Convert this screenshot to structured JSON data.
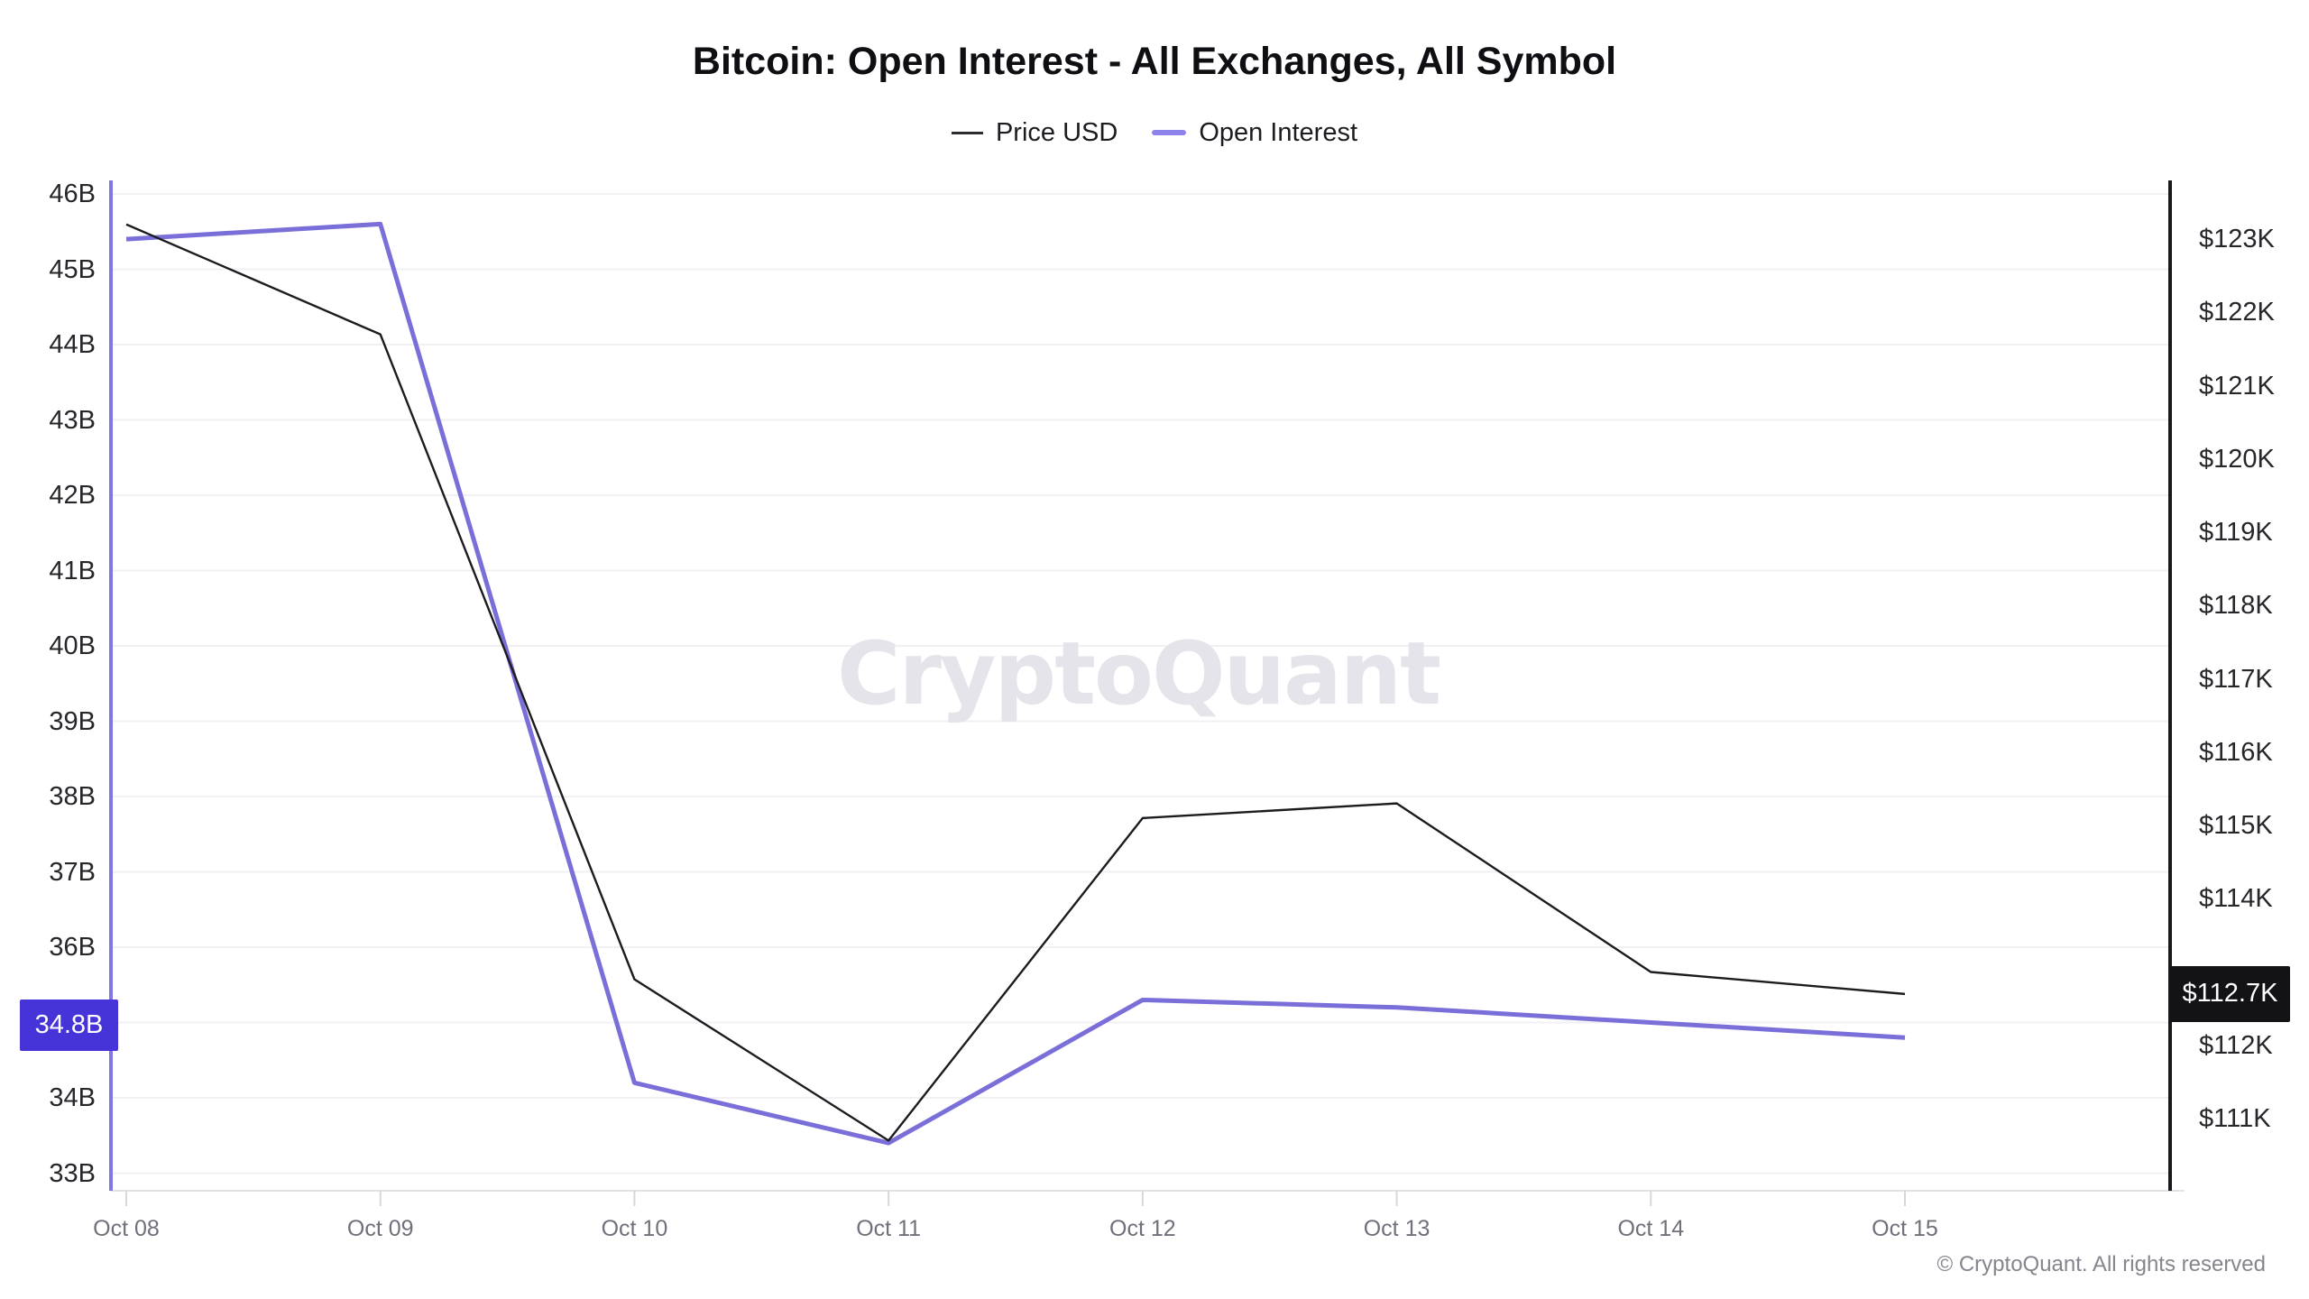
{
  "page": {
    "title": "Bitcoin: Open Interest - All Exchanges, All Symbol"
  },
  "watermark": "CryptoQuant",
  "footer": {
    "copyright": "© CryptoQuant. All rights reserved"
  },
  "chart_data": {
    "type": "line",
    "title": "Bitcoin: Open Interest - All Exchanges, All Symbol",
    "grid": "horizontal",
    "legend_position": "top",
    "categories": [
      "Oct 08",
      "Oct 09",
      "Oct 10",
      "Oct 11",
      "Oct 12",
      "Oct 13",
      "Oct 14",
      "Oct 15"
    ],
    "series": [
      {
        "name": "Price USD",
        "axis": "right",
        "unit": "K USD",
        "color": "#1c1c20",
        "legend_dash_color": "#2b2b30",
        "stroke_width": 2.4,
        "values": [
          123.2,
          121.7,
          112.9,
          110.7,
          115.1,
          115.3,
          113.0,
          112.7
        ]
      },
      {
        "name": "Open Interest",
        "axis": "left",
        "unit": "B USD",
        "color": "#7a6fd9",
        "legend_dash_color": "#8d81ea",
        "stroke_width": 5,
        "values": [
          45.4,
          45.6,
          34.2,
          33.4,
          35.3,
          35.2,
          35.0,
          34.8
        ]
      }
    ],
    "left_axis": {
      "title": "Open Interest",
      "unit": "B",
      "range": [
        32.8,
        46.2
      ],
      "axis_line_color": "#8077e5",
      "grid_values": [
        33,
        34,
        35,
        36,
        37,
        38,
        39,
        40,
        41,
        42,
        43,
        44,
        45,
        46
      ],
      "ticks": [
        {
          "value": 46,
          "label": "46B"
        },
        {
          "value": 45,
          "label": "45B"
        },
        {
          "value": 44,
          "label": "44B"
        },
        {
          "value": 43,
          "label": "43B"
        },
        {
          "value": 42,
          "label": "42B"
        },
        {
          "value": 41,
          "label": "41B"
        },
        {
          "value": 40,
          "label": "40B"
        },
        {
          "value": 39,
          "label": "39B"
        },
        {
          "value": 38,
          "label": "38B"
        },
        {
          "value": 37,
          "label": "37B"
        },
        {
          "value": 36,
          "label": "36B"
        },
        {
          "value": 34,
          "label": "34B"
        },
        {
          "value": 33,
          "label": "33B"
        }
      ]
    },
    "right_axis": {
      "title": "Price USD",
      "unit": "$K",
      "range": [
        110.1,
        124.1
      ],
      "axis_line_color": "#19191d",
      "ticks": [
        {
          "value": 123,
          "label": "$123K"
        },
        {
          "value": 122,
          "label": "$122K"
        },
        {
          "value": 121,
          "label": "$121K"
        },
        {
          "value": 120,
          "label": "$120K"
        },
        {
          "value": 119,
          "label": "$119K"
        },
        {
          "value": 118,
          "label": "$118K"
        },
        {
          "value": 117,
          "label": "$117K"
        },
        {
          "value": 116,
          "label": "$116K"
        },
        {
          "value": 115,
          "label": "$115K"
        },
        {
          "value": 114,
          "label": "$114K"
        },
        {
          "value": 112,
          "label": "$112K"
        },
        {
          "value": 111,
          "label": "$111K"
        }
      ]
    },
    "badges": [
      {
        "series": "Open Interest",
        "label": "34.8B",
        "value": 34.8,
        "side": "left",
        "bg": "#4634d9",
        "text_color": "#ffffff"
      },
      {
        "series": "Price USD",
        "label": "$112.7K",
        "value": 112.7,
        "side": "right",
        "bg": "#131316",
        "text_color": "#ffffff"
      }
    ]
  }
}
